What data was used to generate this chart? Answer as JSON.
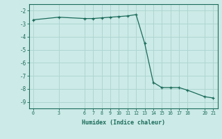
{
  "xlabel": "Humidex (Indice chaleur)",
  "ylabel": "",
  "background_color": "#cceae7",
  "line_color": "#1a6b5a",
  "grid_color": "#aad4d0",
  "x_data": [
    0,
    3,
    6,
    7,
    8,
    9,
    10,
    11,
    12,
    13,
    14,
    15,
    16,
    17,
    18,
    20,
    21
  ],
  "y_data": [
    -2.7,
    -2.5,
    -2.6,
    -2.6,
    -2.55,
    -2.5,
    -2.45,
    -2.4,
    -2.3,
    -4.5,
    -7.5,
    -7.9,
    -7.9,
    -7.9,
    -8.1,
    -8.6,
    -8.7
  ],
  "xticks": [
    0,
    3,
    6,
    7,
    8,
    9,
    10,
    11,
    12,
    13,
    14,
    15,
    16,
    17,
    18,
    20,
    21
  ],
  "yticks": [
    -2,
    -3,
    -4,
    -5,
    -6,
    -7,
    -8,
    -9
  ],
  "ylim": [
    -9.5,
    -1.5
  ],
  "xlim": [
    -0.5,
    21.5
  ]
}
